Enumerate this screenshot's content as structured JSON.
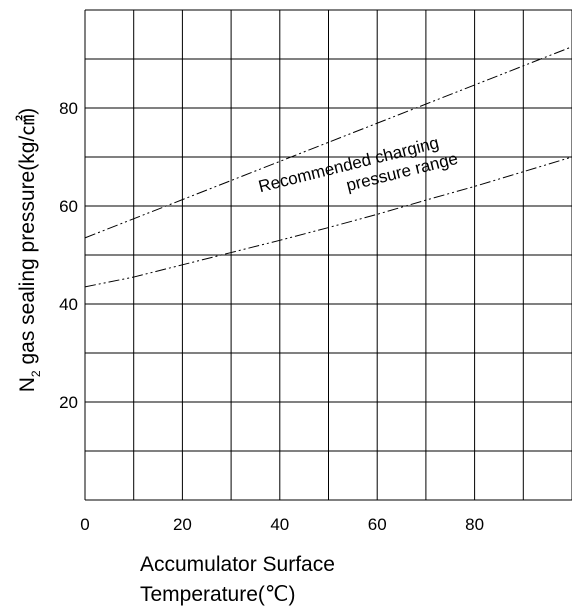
{
  "chart_data": {
    "type": "line",
    "title": "",
    "xlabel_line1": "Accumulator Surface",
    "xlabel_line2": "Temperature(℃)",
    "ylabel_main": "N",
    "ylabel_sub": "2",
    "ylabel_rest": " gas sealing pressure(kg/㎠)",
    "xlim": [
      0,
      100
    ],
    "ylim": [
      0,
      100
    ],
    "x_grid_step": 10,
    "y_grid_step": 10,
    "grid": true,
    "x_tick_labels": [
      "0",
      "20",
      "40",
      "60",
      "80"
    ],
    "x_tick_values": [
      0,
      20,
      40,
      60,
      80
    ],
    "y_tick_labels": [
      "20",
      "40",
      "60",
      "80"
    ],
    "y_tick_values": [
      20,
      40,
      60,
      80
    ],
    "series": [
      {
        "x": [
          0,
          100
        ],
        "y": [
          53.5,
          92.5
        ],
        "style": "dash-dot"
      },
      {
        "x": [
          0,
          10,
          20,
          30,
          40,
          50,
          60,
          70,
          80,
          90,
          100
        ],
        "y": [
          43.5,
          45.5,
          48,
          50.5,
          53,
          55.6,
          58.3,
          61.2,
          64,
          67,
          70
        ],
        "style": "dash-dot"
      }
    ],
    "annotation_line1": "Recommended charging",
    "annotation_line2": "pressure range"
  }
}
